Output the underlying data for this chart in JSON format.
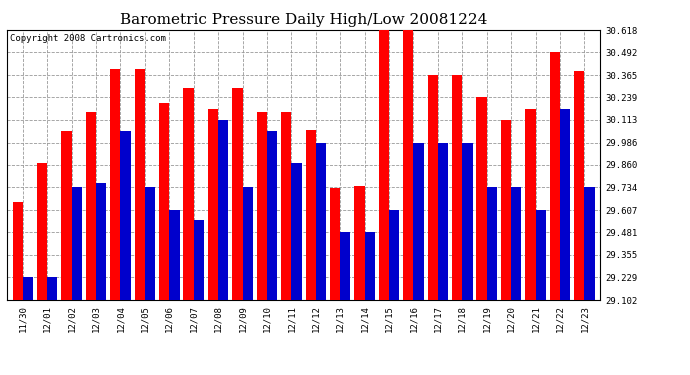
{
  "title": "Barometric Pressure Daily High/Low 20081224",
  "copyright": "Copyright 2008 Cartronics.com",
  "categories": [
    "11/30",
    "12/01",
    "12/02",
    "12/03",
    "12/04",
    "12/05",
    "12/06",
    "12/07",
    "12/08",
    "12/09",
    "12/10",
    "12/11",
    "12/12",
    "12/13",
    "12/14",
    "12/15",
    "12/16",
    "12/17",
    "12/18",
    "12/19",
    "12/20",
    "12/21",
    "12/22",
    "12/23"
  ],
  "highs": [
    29.65,
    29.87,
    30.05,
    30.16,
    30.4,
    30.4,
    30.21,
    30.29,
    30.175,
    30.29,
    30.16,
    30.16,
    30.055,
    29.73,
    29.74,
    30.618,
    30.618,
    30.365,
    30.365,
    30.239,
    30.113,
    30.175,
    30.492,
    30.39
  ],
  "lows": [
    29.229,
    29.229,
    29.734,
    29.76,
    30.05,
    29.734,
    29.607,
    29.55,
    30.113,
    29.734,
    30.05,
    29.87,
    29.986,
    29.481,
    29.481,
    29.607,
    29.986,
    29.986,
    29.986,
    29.734,
    29.734,
    29.607,
    30.176,
    29.734
  ],
  "high_color": "#FF0000",
  "low_color": "#0000CC",
  "bg_color": "#FFFFFF",
  "grid_color": "#999999",
  "yticks": [
    29.102,
    29.229,
    29.355,
    29.481,
    29.607,
    29.734,
    29.86,
    29.986,
    30.113,
    30.239,
    30.365,
    30.492,
    30.618
  ],
  "ymin": 29.102,
  "ymax": 30.618,
  "title_fontsize": 11,
  "tick_fontsize": 6.5,
  "copyright_fontsize": 6.5
}
